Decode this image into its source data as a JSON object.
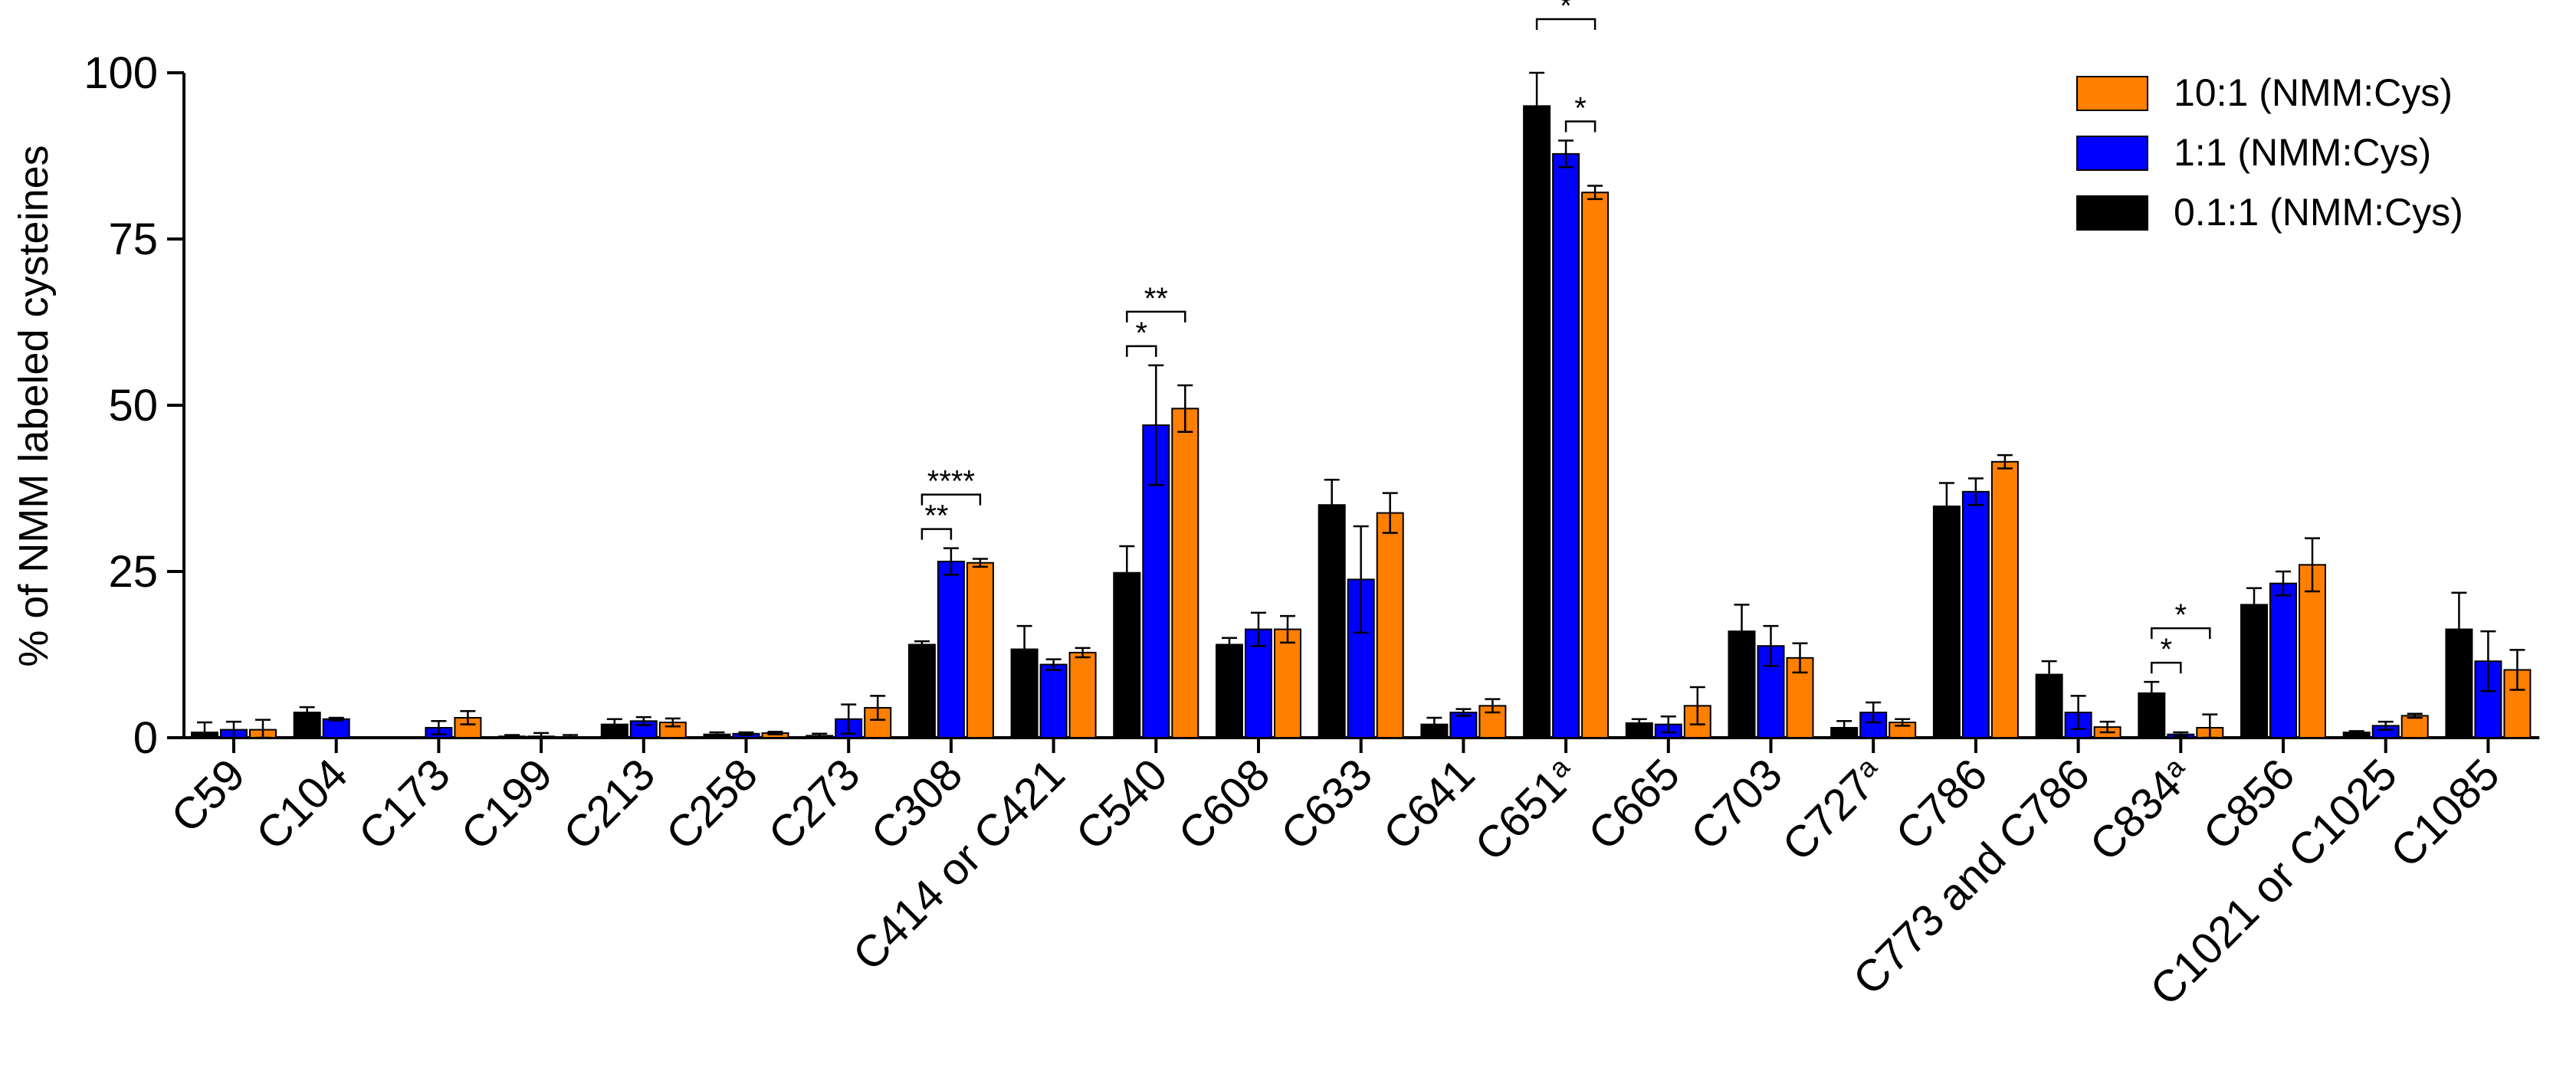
{
  "chart_data": {
    "type": "bar",
    "title": "",
    "xlabel": "",
    "ylabel": "% of NMM labeled cysteines",
    "ylim": [
      0,
      100
    ],
    "yticks": [
      "0",
      "25",
      "50",
      "75",
      "100"
    ],
    "grid": false,
    "legend_position": "top-right",
    "categories": [
      {
        "main": "C59",
        "sup": ""
      },
      {
        "main": "C104",
        "sup": ""
      },
      {
        "main": "C173",
        "sup": ""
      },
      {
        "main": "C199",
        "sup": ""
      },
      {
        "main": "C213",
        "sup": ""
      },
      {
        "main": "C258",
        "sup": ""
      },
      {
        "main": "C273",
        "sup": ""
      },
      {
        "main": "C308",
        "sup": ""
      },
      {
        "main": "C414 or C421",
        "sup": ""
      },
      {
        "main": "C540",
        "sup": ""
      },
      {
        "main": "C608",
        "sup": ""
      },
      {
        "main": "C633",
        "sup": ""
      },
      {
        "main": "C641",
        "sup": ""
      },
      {
        "main": "C651",
        "sup": "a"
      },
      {
        "main": "C665",
        "sup": ""
      },
      {
        "main": "C703",
        "sup": ""
      },
      {
        "main": "C727",
        "sup": "a"
      },
      {
        "main": "C786",
        "sup": ""
      },
      {
        "main": "C773 and C786",
        "sup": ""
      },
      {
        "main": "C834",
        "sup": "a"
      },
      {
        "main": "C856",
        "sup": ""
      },
      {
        "main": "C1021 or C1025",
        "sup": ""
      },
      {
        "main": "C1085",
        "sup": ""
      }
    ],
    "series": [
      {
        "name": "0.1:1 (NMM:Cys)",
        "color": "#000000",
        "values": [
          0.8,
          3.8,
          null,
          0.2,
          2.0,
          0.5,
          0.3,
          14.0,
          13.3,
          24.8,
          14.0,
          35.0,
          2.0,
          95.0,
          2.2,
          16.0,
          1.5,
          34.8,
          9.5,
          6.7,
          20.0,
          0.8,
          16.3
        ],
        "errors": [
          1.5,
          0.8,
          null,
          0.2,
          0.8,
          0.3,
          0.3,
          0.5,
          3.5,
          4.0,
          1.0,
          3.8,
          1.0,
          5.0,
          0.6,
          4.0,
          1.0,
          3.5,
          2.0,
          1.7,
          2.5,
          0.2,
          5.5
        ]
      },
      {
        "name": "1:1 (NMM:Cys)",
        "color": "#0000ff",
        "values": [
          1.2,
          2.8,
          1.5,
          0.2,
          2.5,
          0.6,
          2.8,
          26.5,
          11.0,
          47.0,
          16.3,
          23.8,
          3.8,
          87.8,
          2.0,
          13.8,
          3.8,
          37.0,
          3.8,
          0.5,
          23.2,
          1.8,
          11.5
        ],
        "errors": [
          1.2,
          0.2,
          1.0,
          0.5,
          0.6,
          0.2,
          2.2,
          2.0,
          0.8,
          9.0,
          2.5,
          8.0,
          0.5,
          2.0,
          1.2,
          3.0,
          1.5,
          2.0,
          2.5,
          0.3,
          1.8,
          0.6,
          4.5
        ]
      },
      {
        "name": "10:1 (NMM:Cys)",
        "color": "#ff7f00",
        "values": [
          1.2,
          null,
          3.0,
          0.1,
          2.3,
          0.7,
          4.5,
          26.3,
          12.8,
          49.5,
          16.3,
          33.8,
          4.8,
          82.0,
          4.8,
          12.0,
          2.3,
          41.5,
          1.6,
          1.5,
          26.0,
          3.3,
          10.2
        ],
        "errors": [
          1.5,
          null,
          1.0,
          0.3,
          0.6,
          0.2,
          1.8,
          0.6,
          0.7,
          3.5,
          2.0,
          3.0,
          1.0,
          1.0,
          2.8,
          2.2,
          0.5,
          1.0,
          0.8,
          2.0,
          4.0,
          0.3,
          3.0
        ]
      }
    ],
    "significance": [
      {
        "category_index": 7,
        "from_series": 0,
        "to_series": 1,
        "label": "**",
        "level": 0
      },
      {
        "category_index": 7,
        "from_series": 0,
        "to_series": 2,
        "label": "****",
        "level": 1
      },
      {
        "category_index": 9,
        "from_series": 0,
        "to_series": 1,
        "label": "*",
        "level": 0
      },
      {
        "category_index": 9,
        "from_series": 0,
        "to_series": 2,
        "label": "**",
        "level": 1
      },
      {
        "category_index": 13,
        "from_series": 1,
        "to_series": 2,
        "label": "*",
        "level": 0
      },
      {
        "category_index": 13,
        "from_series": 0,
        "to_series": 2,
        "label": "*",
        "level": 1
      },
      {
        "category_index": 19,
        "from_series": 0,
        "to_series": 1,
        "label": "*",
        "level": 0
      },
      {
        "category_index": 19,
        "from_series": 0,
        "to_series": 2,
        "label": "*",
        "level": 1
      }
    ]
  }
}
